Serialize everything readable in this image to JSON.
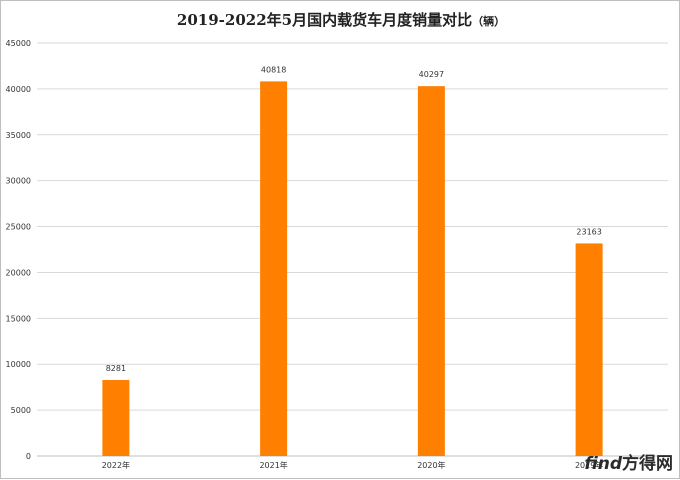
{
  "watermark": {
    "brand": "find",
    "name": "方得网"
  },
  "chart_data": {
    "type": "bar",
    "title": "2019-2022年5月国内载货车月度销量对比",
    "title_unit": "（辆）",
    "categories": [
      "2022年",
      "2021年",
      "2020年",
      "2019年"
    ],
    "values": [
      8281,
      40818,
      40297,
      23163
    ],
    "data_labels": [
      "8281",
      "40818",
      "40297",
      "23163"
    ],
    "xlabel": "",
    "ylabel": "",
    "ylim": [
      0,
      45000
    ],
    "yticks": [
      0,
      5000,
      10000,
      15000,
      20000,
      25000,
      30000,
      35000,
      40000,
      45000
    ],
    "grid": true,
    "legend": "none",
    "bar_color": "#ff7f00",
    "grid_color": "#d9d9d9"
  }
}
